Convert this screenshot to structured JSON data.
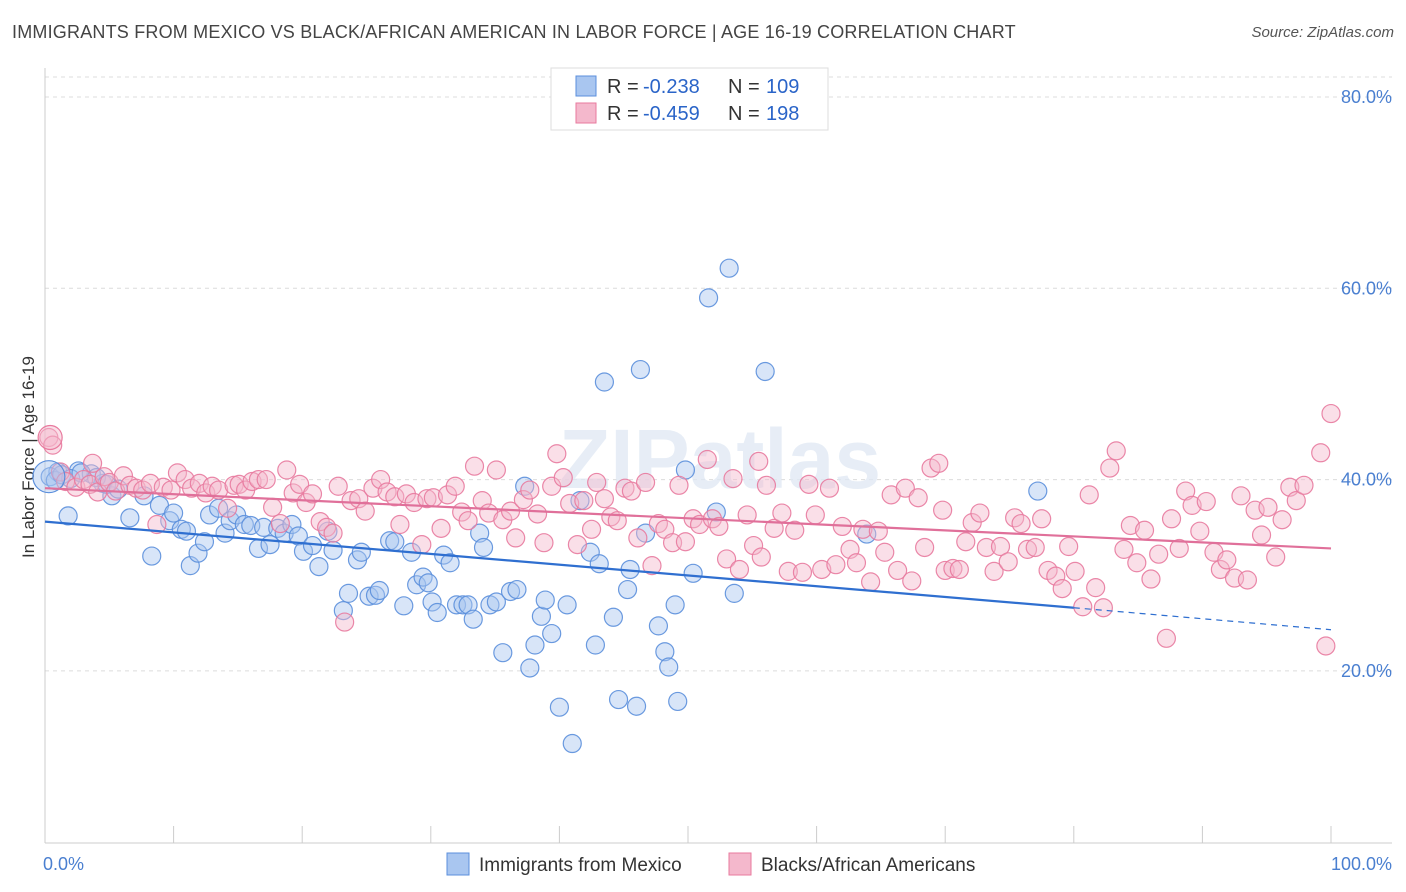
{
  "title": "IMMIGRANTS FROM MEXICO VS BLACK/AFRICAN AMERICAN IN LABOR FORCE | AGE 16-19 CORRELATION CHART",
  "source": "Source: ZipAtlas.com",
  "watermark": "ZIPatlas",
  "colors": {
    "blue": "#5b8fdc",
    "blue_fill": "#a9c6f0",
    "pink": "#e87a9e",
    "pink_fill": "#f4b8cc",
    "blue_line": "#2f6fd0",
    "pink_line": "#e0709a",
    "tick": "#4a7fd0"
  },
  "legend": {
    "items": [
      {
        "r_label": "R =",
        "r_value": "-0.238",
        "n_label": "N =",
        "n_value": "109"
      },
      {
        "r_label": "R =",
        "r_value": "-0.459",
        "n_label": "N =",
        "n_value": "198"
      }
    ]
  },
  "chart_data": {
    "type": "scatter",
    "title": "IMMIGRANTS FROM MEXICO VS BLACK/AFRICAN AMERICAN IN LABOR FORCE | AGE 16-19 CORRELATION CHART",
    "xlabel": "",
    "ylabel": "In Labor Force | Age 16-19",
    "x_tick_labels": [
      "0.0%",
      "100.0%"
    ],
    "y_tick_labels": [
      "20.0%",
      "40.0%",
      "60.0%",
      "80.0%"
    ],
    "y_ticks": [
      20,
      40,
      60,
      80
    ],
    "xlim": [
      0,
      100
    ],
    "ylim": [
      0,
      83
    ],
    "grid": true,
    "legend_position": "top-center",
    "series": [
      {
        "name": "Immigrants from Mexico",
        "color": "#5b8fdc",
        "trend": {
          "x": [
            0,
            80
          ],
          "y": [
            35.6,
            26.6
          ],
          "dashed_to": [
            100,
            24.3
          ]
        },
        "points": [
          [
            1,
            40.8
          ],
          [
            1.8,
            36.2
          ],
          [
            2.6,
            40.9
          ],
          [
            3.6,
            40.6
          ],
          [
            4.5,
            39.6
          ],
          [
            5.2,
            38.3
          ],
          [
            6.6,
            36
          ],
          [
            7.7,
            38.3
          ],
          [
            8.3,
            32
          ],
          [
            8.9,
            37.3
          ],
          [
            9.7,
            35.7
          ],
          [
            10,
            36.5
          ],
          [
            10.6,
            34.8
          ],
          [
            11,
            34.6
          ],
          [
            11.3,
            31
          ],
          [
            11.9,
            32.3
          ],
          [
            12.4,
            33.5
          ],
          [
            12.8,
            36.3
          ],
          [
            13.5,
            37
          ],
          [
            14,
            34.4
          ],
          [
            14.4,
            35.7
          ],
          [
            14.9,
            36.3
          ],
          [
            15.5,
            35.3
          ],
          [
            16,
            35.2
          ],
          [
            16.6,
            32.8
          ],
          [
            17,
            35
          ],
          [
            17.5,
            33.2
          ],
          [
            18.1,
            34.9
          ],
          [
            18.6,
            34.4
          ],
          [
            19.2,
            35.3
          ],
          [
            19.7,
            34.1
          ],
          [
            20.1,
            32.5
          ],
          [
            20.8,
            33.1
          ],
          [
            21.3,
            30.9
          ],
          [
            22,
            34.6
          ],
          [
            22.4,
            32.6
          ],
          [
            23.2,
            26.3
          ],
          [
            23.6,
            28.1
          ],
          [
            24.3,
            31.6
          ],
          [
            24.6,
            32.4
          ],
          [
            25.2,
            27.8
          ],
          [
            25.7,
            27.9
          ],
          [
            26,
            28.4
          ],
          [
            26.8,
            33.6
          ],
          [
            27.2,
            33.5
          ],
          [
            27.9,
            26.8
          ],
          [
            28.5,
            32.4
          ],
          [
            28.9,
            29
          ],
          [
            29.4,
            29.8
          ],
          [
            29.8,
            29.2
          ],
          [
            30.1,
            27.2
          ],
          [
            30.5,
            26.1
          ],
          [
            31,
            32.1
          ],
          [
            31.5,
            31.3
          ],
          [
            32,
            26.9
          ],
          [
            32.5,
            26.9
          ],
          [
            32.9,
            26.9
          ],
          [
            33.3,
            25.4
          ],
          [
            33.8,
            34.4
          ],
          [
            34.1,
            32.9
          ],
          [
            34.6,
            26.9
          ],
          [
            35.1,
            27.2
          ],
          [
            35.6,
            21.9
          ],
          [
            36.2,
            28.3
          ],
          [
            36.7,
            28.5
          ],
          [
            37.3,
            39.3
          ],
          [
            37.7,
            20.3
          ],
          [
            38.1,
            22.7
          ],
          [
            38.6,
            25.7
          ],
          [
            38.9,
            27.4
          ],
          [
            39.4,
            23.9
          ],
          [
            40,
            16.2
          ],
          [
            40.6,
            26.9
          ],
          [
            41,
            12.4
          ],
          [
            41.6,
            37.8
          ],
          [
            42.4,
            32.4
          ],
          [
            42.8,
            22.7
          ],
          [
            43.1,
            31.2
          ],
          [
            43.5,
            50.2
          ],
          [
            44.2,
            25.6
          ],
          [
            44.6,
            17
          ],
          [
            45.3,
            28.5
          ],
          [
            45.5,
            30.6
          ],
          [
            46,
            16.3
          ],
          [
            46.3,
            51.5
          ],
          [
            46.7,
            34.4
          ],
          [
            47.7,
            24.7
          ],
          [
            48.2,
            22
          ],
          [
            48.5,
            20.4
          ],
          [
            49,
            26.9
          ],
          [
            49.2,
            16.8
          ],
          [
            49.8,
            41
          ],
          [
            50.4,
            30.2
          ],
          [
            51.6,
            59
          ],
          [
            52.2,
            36.6
          ],
          [
            53.2,
            62.1
          ],
          [
            53.6,
            28.1
          ],
          [
            56,
            51.3
          ],
          [
            63.9,
            34.3
          ],
          [
            77.2,
            38.8
          ],
          [
            0.4,
            40.3
          ],
          [
            0.8,
            39.9
          ],
          [
            1.3,
            40.5
          ],
          [
            2,
            40.1
          ],
          [
            2.8,
            40.7
          ],
          [
            4,
            40.2
          ],
          [
            4.8,
            39.5
          ],
          [
            5.7,
            39
          ]
        ]
      },
      {
        "name": "Blacks/African Americans",
        "color": "#e87a9e",
        "trend": {
          "x": [
            0,
            100
          ],
          "y": [
            39.1,
            32.8
          ]
        },
        "points": [
          [
            0.3,
            44.4
          ],
          [
            0.6,
            43.6
          ],
          [
            1.2,
            40.8
          ],
          [
            1.6,
            39.8
          ],
          [
            2.4,
            39.2
          ],
          [
            3,
            40
          ],
          [
            3.5,
            39.5
          ],
          [
            4.1,
            38.7
          ],
          [
            4.6,
            40.3
          ],
          [
            5,
            39.7
          ],
          [
            5.5,
            38.8
          ],
          [
            6.1,
            40.4
          ],
          [
            6.6,
            39.4
          ],
          [
            7.1,
            39.1
          ],
          [
            7.6,
            38.9
          ],
          [
            8.2,
            39.6
          ],
          [
            8.7,
            35.3
          ],
          [
            9.2,
            39.2
          ],
          [
            9.8,
            38.9
          ],
          [
            10.3,
            40.7
          ],
          [
            10.9,
            40
          ],
          [
            11.4,
            39.1
          ],
          [
            12,
            39.6
          ],
          [
            12.5,
            38.6
          ],
          [
            13,
            39.3
          ],
          [
            13.5,
            38.9
          ],
          [
            14.2,
            37
          ],
          [
            14.7,
            39.4
          ],
          [
            15.1,
            39.5
          ],
          [
            15.6,
            38.9
          ],
          [
            16.1,
            39.8
          ],
          [
            16.6,
            40
          ],
          [
            17.2,
            40
          ],
          [
            17.7,
            37.1
          ],
          [
            18.3,
            35.4
          ],
          [
            18.8,
            41
          ],
          [
            19.3,
            38.6
          ],
          [
            19.8,
            39.5
          ],
          [
            20.3,
            37.6
          ],
          [
            20.8,
            38.5
          ],
          [
            21.4,
            35.6
          ],
          [
            21.9,
            35
          ],
          [
            22.4,
            34.4
          ],
          [
            22.8,
            39.3
          ],
          [
            23.3,
            25.1
          ],
          [
            23.8,
            37.8
          ],
          [
            24.4,
            38
          ],
          [
            24.9,
            36.7
          ],
          [
            25.5,
            39.1
          ],
          [
            26.1,
            40
          ],
          [
            26.6,
            38.7
          ],
          [
            27.2,
            38.2
          ],
          [
            27.6,
            35.3
          ],
          [
            28.1,
            38.5
          ],
          [
            28.7,
            37.6
          ],
          [
            29.3,
            33.2
          ],
          [
            29.7,
            38
          ],
          [
            30.2,
            38.1
          ],
          [
            30.8,
            34.9
          ],
          [
            31.3,
            38.4
          ],
          [
            31.9,
            39.3
          ],
          [
            32.4,
            36.6
          ],
          [
            32.9,
            35.7
          ],
          [
            33.4,
            41.4
          ],
          [
            34,
            37.8
          ],
          [
            34.5,
            36.5
          ],
          [
            35.1,
            41
          ],
          [
            35.6,
            35.8
          ],
          [
            36.2,
            36.7
          ],
          [
            36.6,
            33.9
          ],
          [
            37.2,
            37.9
          ],
          [
            37.7,
            38.9
          ],
          [
            38.3,
            36.4
          ],
          [
            38.8,
            33.4
          ],
          [
            39.4,
            39.3
          ],
          [
            39.8,
            42.7
          ],
          [
            40.3,
            40.2
          ],
          [
            40.8,
            37.5
          ],
          [
            41.4,
            33.2
          ],
          [
            41.9,
            37.8
          ],
          [
            42.5,
            34.8
          ],
          [
            42.9,
            39.7
          ],
          [
            43.5,
            38
          ],
          [
            44,
            36.1
          ],
          [
            44.5,
            35.7
          ],
          [
            45.1,
            39.1
          ],
          [
            45.6,
            38.8
          ],
          [
            46.1,
            33.9
          ],
          [
            46.7,
            39.7
          ],
          [
            47.2,
            31
          ],
          [
            47.7,
            35.4
          ],
          [
            48.2,
            34.8
          ],
          [
            48.8,
            33.4
          ],
          [
            49.3,
            39.4
          ],
          [
            49.8,
            33.5
          ],
          [
            50.4,
            35.9
          ],
          [
            50.9,
            35.3
          ],
          [
            51.5,
            42.1
          ],
          [
            51.9,
            35.9
          ],
          [
            52.4,
            35.1
          ],
          [
            53,
            31.7
          ],
          [
            53.5,
            40.1
          ],
          [
            54,
            30.6
          ],
          [
            54.6,
            36.3
          ],
          [
            55.1,
            33.1
          ],
          [
            55.7,
            31.9
          ],
          [
            56.1,
            39.4
          ],
          [
            56.7,
            34.9
          ],
          [
            57.3,
            36.5
          ],
          [
            57.8,
            30.4
          ],
          [
            58.3,
            34.7
          ],
          [
            58.9,
            30.3
          ],
          [
            59.4,
            39.5
          ],
          [
            59.9,
            36.3
          ],
          [
            60.4,
            30.6
          ],
          [
            61,
            39.1
          ],
          [
            61.5,
            31.1
          ],
          [
            62,
            35.1
          ],
          [
            62.6,
            32.7
          ],
          [
            63.1,
            31.3
          ],
          [
            63.6,
            34.8
          ],
          [
            64.2,
            29.3
          ],
          [
            64.8,
            34.6
          ],
          [
            65.3,
            32.4
          ],
          [
            65.8,
            38.4
          ],
          [
            66.3,
            30.5
          ],
          [
            66.9,
            39.1
          ],
          [
            67.4,
            29.4
          ],
          [
            67.9,
            38.1
          ],
          [
            68.4,
            32.9
          ],
          [
            68.9,
            41.2
          ],
          [
            69.5,
            41.7
          ],
          [
            70,
            30.5
          ],
          [
            70.6,
            30.7
          ],
          [
            71.1,
            30.6
          ],
          [
            71.6,
            33.5
          ],
          [
            72.1,
            35.5
          ],
          [
            72.7,
            36.5
          ],
          [
            73.2,
            32.9
          ],
          [
            73.8,
            30.4
          ],
          [
            74.3,
            33
          ],
          [
            74.9,
            31.4
          ],
          [
            75.4,
            36
          ],
          [
            75.9,
            35.4
          ],
          [
            76.4,
            32.7
          ],
          [
            77,
            32.9
          ],
          [
            77.5,
            35.9
          ],
          [
            78,
            30.5
          ],
          [
            78.6,
            29.9
          ],
          [
            79.1,
            28.6
          ],
          [
            79.6,
            33
          ],
          [
            80.1,
            30.4
          ],
          [
            80.7,
            26.7
          ],
          [
            81.2,
            38.4
          ],
          [
            81.7,
            28.7
          ],
          [
            82.3,
            26.6
          ],
          [
            82.8,
            41.2
          ],
          [
            83.3,
            43
          ],
          [
            83.9,
            32.7
          ],
          [
            84.4,
            35.2
          ],
          [
            84.9,
            31.3
          ],
          [
            85.5,
            34.7
          ],
          [
            86,
            29.6
          ],
          [
            86.6,
            32.2
          ],
          [
            87.2,
            23.4
          ],
          [
            87.6,
            35.9
          ],
          [
            88.2,
            32.8
          ],
          [
            88.7,
            38.8
          ],
          [
            89.2,
            37.3
          ],
          [
            89.8,
            34.6
          ],
          [
            90.3,
            37.7
          ],
          [
            90.9,
            32.4
          ],
          [
            91.4,
            30.6
          ],
          [
            91.9,
            31.6
          ],
          [
            92.5,
            29.7
          ],
          [
            93,
            38.3
          ],
          [
            93.5,
            29.5
          ],
          [
            94.1,
            36.8
          ],
          [
            94.6,
            34.2
          ],
          [
            95.1,
            37.1
          ],
          [
            95.7,
            31.9
          ],
          [
            96.2,
            35.8
          ],
          [
            96.8,
            39.2
          ],
          [
            97.3,
            37.8
          ],
          [
            97.9,
            39.4
          ],
          [
            99.2,
            42.8
          ],
          [
            99.6,
            22.6
          ],
          [
            100,
            46.9
          ],
          [
            3.7,
            41.7
          ],
          [
            55.5,
            41.9
          ],
          [
            69.8,
            36.8
          ]
        ]
      }
    ]
  },
  "bottom_legend": {
    "series1": "Immigrants from Mexico",
    "series2": "Blacks/African Americans"
  }
}
